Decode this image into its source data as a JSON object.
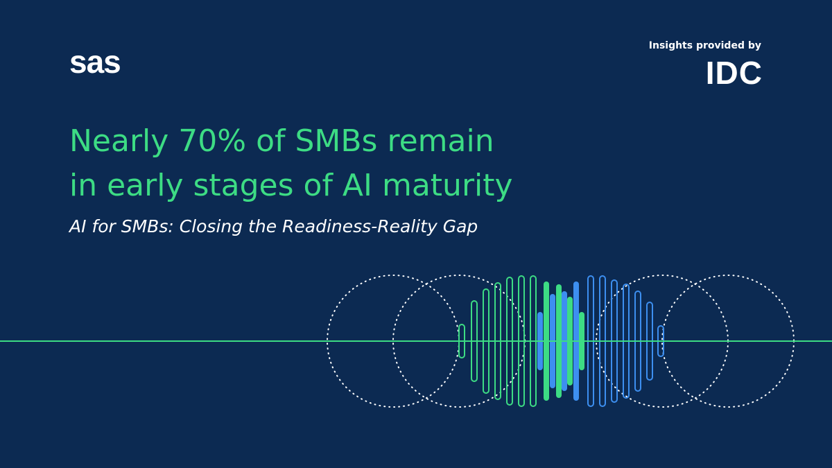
{
  "logo": "sas",
  "attribution": {
    "label": "Insights provided by",
    "brand": "IDC"
  },
  "headline": [
    "Nearly 70% of SMBs remain",
    "in early stages of AI maturity"
  ],
  "subtitle": "AI for SMBs: Closing the Readiness-Reality Gap"
}
